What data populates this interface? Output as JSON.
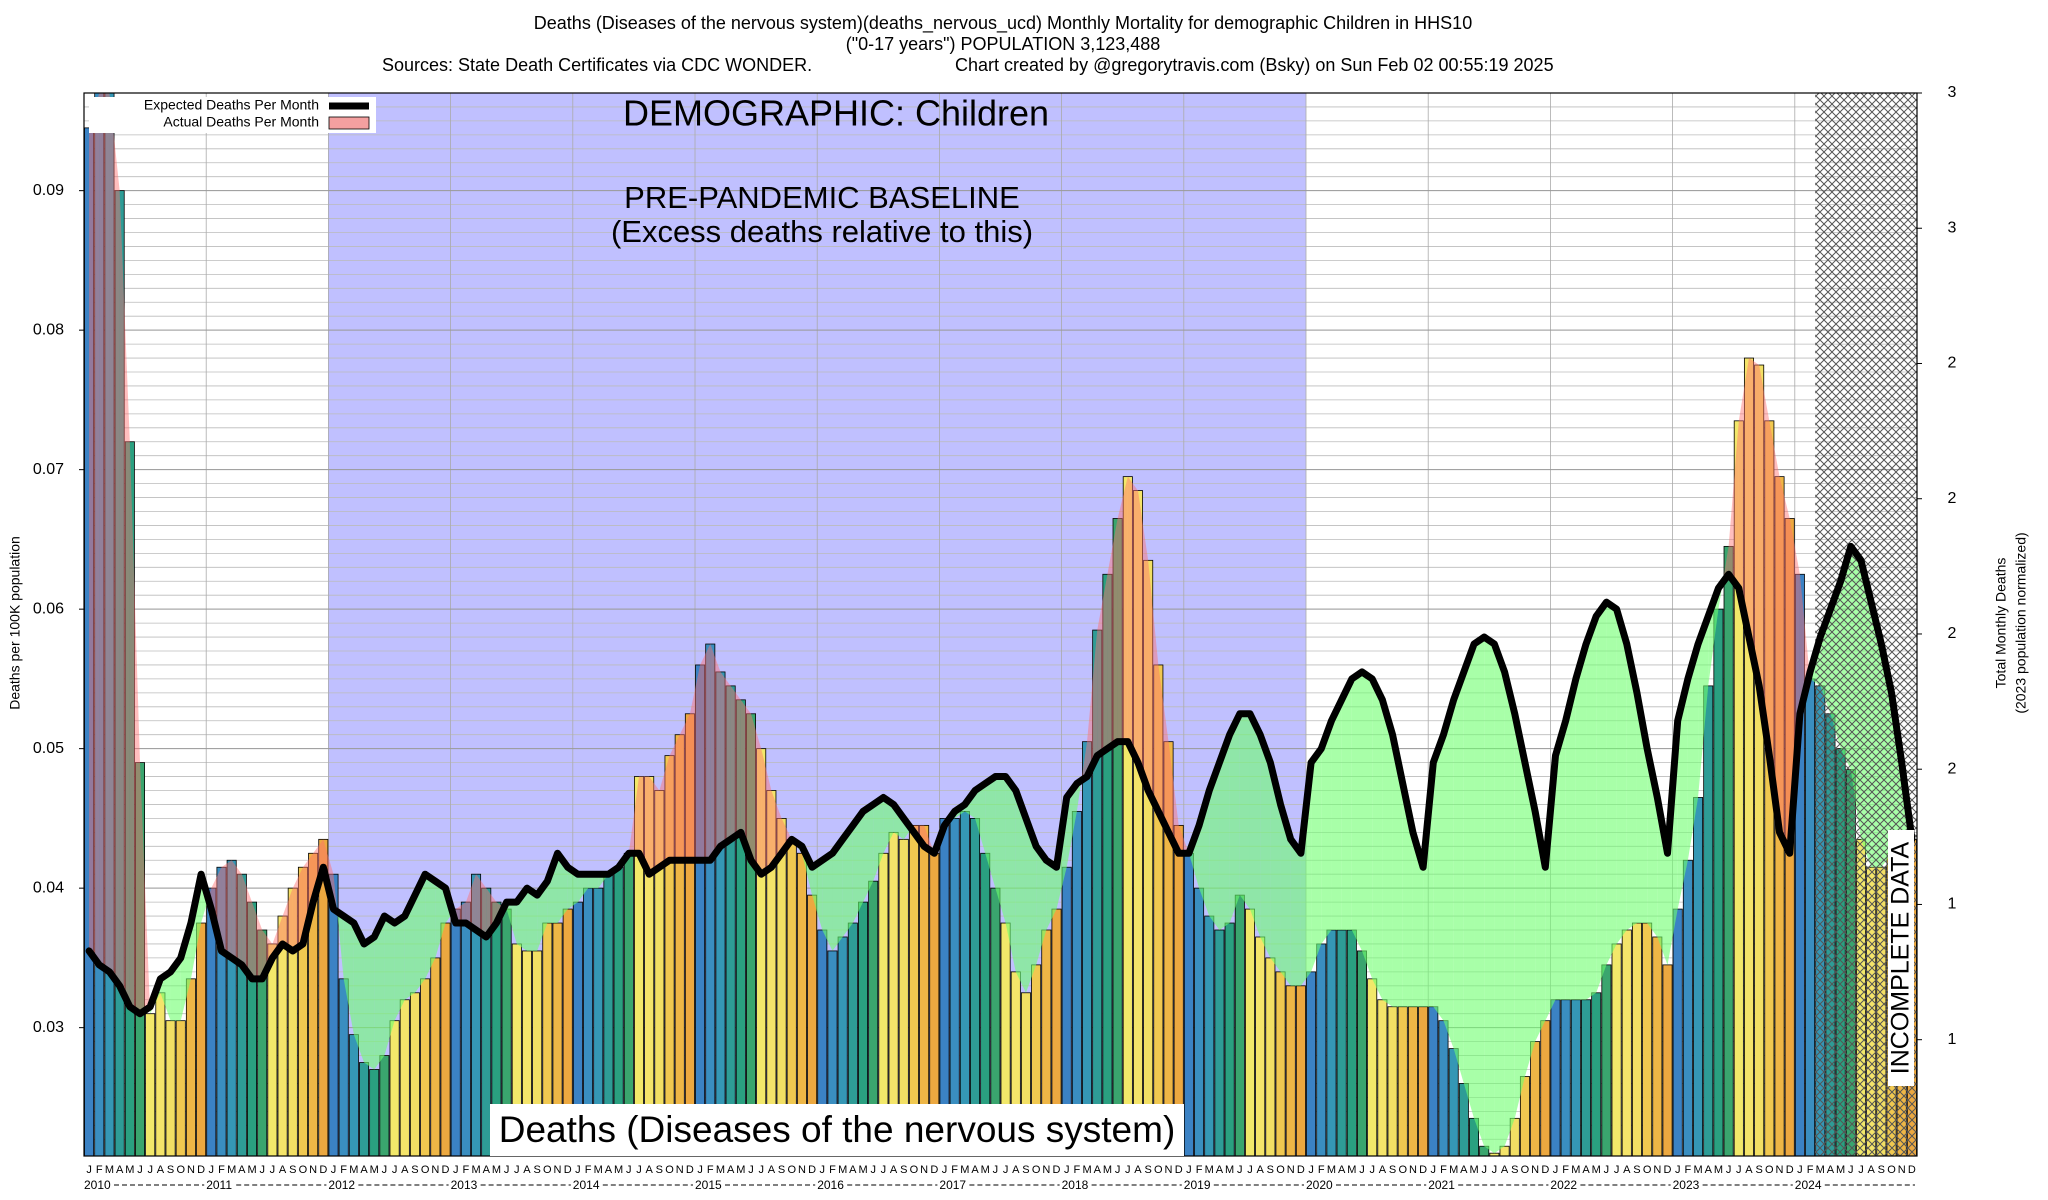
{
  "chart_data": {
    "type": "bar_line",
    "title": [
      "Deaths (Diseases of the nervous system)(deaths_nervous_ucd) Monthly Mortality for demographic Children in HHS10",
      "(\"0-17 years\") POPULATION 3,123,488",
      "Sources: State Death Certificates via CDC WONDER.",
      "Chart created by @gregorytravis.com (Bsky) on Sun Feb 02 00:55:19 2025"
    ],
    "annotations": [
      "DEMOGRAPHIC: Children",
      "PRE-PANDEMIC BASELINE",
      "(Excess deaths relative to this)",
      "Deaths (Diseases of the nervous system)",
      "INCOMPLETE DATA"
    ],
    "ylabel": "Deaths per 100K population",
    "y2label": [
      "Total Monthly Deaths",
      "(2023 population normalized)"
    ],
    "months": [
      "J",
      "F",
      "M",
      "A",
      "M",
      "J",
      "J",
      "A",
      "S",
      "O",
      "N",
      "D"
    ],
    "years": [
      "2010",
      "2011",
      "2012",
      "2013",
      "2014",
      "2015",
      "2016",
      "2017",
      "2018",
      "2019",
      "2020",
      "2021",
      "2022",
      "2023",
      "2024"
    ],
    "ylim": [
      0.0208,
      0.097
    ],
    "yticks": [
      0.03,
      0.04,
      0.05,
      0.06,
      0.07,
      0.08,
      0.09
    ],
    "y2lim": [
      0.642,
      3.0
    ],
    "y2ticks": [
      {
        "value": 0.9,
        "label": "1"
      },
      {
        "value": 1.2,
        "label": "1"
      },
      {
        "value": 1.5,
        "label": "2"
      },
      {
        "value": 1.8,
        "label": "2"
      },
      {
        "value": 2.1,
        "label": "2"
      },
      {
        "value": 2.4,
        "label": "2"
      },
      {
        "value": 2.7,
        "label": "3"
      },
      {
        "value": 3.0,
        "label": "3"
      }
    ],
    "grid": true,
    "legend": "top-left",
    "bar_colors": [
      "#3b82c4",
      "#3a8ec0",
      "#3597b5",
      "#2e9c96",
      "#2aa080",
      "#3aa56e",
      "#f2e86a",
      "#f4e46a",
      "#f2df64",
      "#f0c850",
      "#eeb646",
      "#eca840"
    ],
    "series": [
      {
        "name": "Expected Deaths Per Month",
        "color": "#000000",
        "values": [
          0.0355,
          0.0345,
          0.034,
          0.033,
          0.0315,
          0.031,
          0.0315,
          0.0335,
          0.034,
          0.035,
          0.0375,
          0.041,
          0.0385,
          0.0355,
          0.035,
          0.0345,
          0.0335,
          0.0335,
          0.035,
          0.036,
          0.0355,
          0.036,
          0.039,
          0.0415,
          0.0385,
          0.038,
          0.0375,
          0.036,
          0.0365,
          0.038,
          0.0375,
          0.038,
          0.0395,
          0.041,
          0.0405,
          0.04,
          0.0375,
          0.0375,
          0.037,
          0.0365,
          0.0375,
          0.039,
          0.039,
          0.04,
          0.0395,
          0.0405,
          0.0425,
          0.0415,
          0.041,
          0.041,
          0.041,
          0.041,
          0.0415,
          0.0425,
          0.0425,
          0.041,
          0.0415,
          0.042,
          0.042,
          0.042,
          0.042,
          0.042,
          0.043,
          0.0435,
          0.044,
          0.042,
          0.041,
          0.0415,
          0.0425,
          0.0435,
          0.043,
          0.0415,
          0.042,
          0.0425,
          0.0435,
          0.0445,
          0.0455,
          0.046,
          0.0465,
          0.046,
          0.045,
          0.044,
          0.043,
          0.0425,
          0.0445,
          0.0455,
          0.046,
          0.047,
          0.0475,
          0.048,
          0.048,
          0.047,
          0.045,
          0.043,
          0.042,
          0.0415,
          0.0465,
          0.0475,
          0.048,
          0.0495,
          0.05,
          0.0505,
          0.0505,
          0.049,
          0.047,
          0.0455,
          0.044,
          0.0425,
          0.0425,
          0.0445,
          0.047,
          0.049,
          0.051,
          0.0525,
          0.0525,
          0.051,
          0.049,
          0.046,
          0.0435,
          0.0425,
          0.049,
          0.05,
          0.052,
          0.0535,
          0.055,
          0.0555,
          0.055,
          0.0535,
          0.051,
          0.0475,
          0.044,
          0.0415,
          0.049,
          0.051,
          0.0535,
          0.0555,
          0.0575,
          0.058,
          0.0575,
          0.0555,
          0.0525,
          0.049,
          0.0455,
          0.0415,
          0.0495,
          0.052,
          0.055,
          0.0575,
          0.0595,
          0.0605,
          0.06,
          0.0575,
          0.054,
          0.05,
          0.0465,
          0.0425,
          0.052,
          0.055,
          0.0575,
          0.0595,
          0.0615,
          0.0625,
          0.0615,
          0.058,
          0.0545,
          0.0495,
          0.044,
          0.0425,
          0.0525,
          0.0555,
          0.058,
          0.06,
          0.062,
          0.0645,
          0.0635,
          0.0605,
          0.0575,
          0.054,
          0.049,
          0.0435
        ]
      },
      {
        "name": "Actual Deaths Per Month",
        "color": "#f4a0a0",
        "values": [
          0.0945,
          0.097,
          0.097,
          0.09,
          0.072,
          0.049,
          0.031,
          0.0325,
          0.0305,
          0.0305,
          0.0335,
          0.0375,
          0.04,
          0.0415,
          0.042,
          0.041,
          0.039,
          0.037,
          0.036,
          0.038,
          0.04,
          0.0415,
          0.0425,
          0.0435,
          0.041,
          0.0335,
          0.0295,
          0.0275,
          0.027,
          0.028,
          0.0305,
          0.032,
          0.0325,
          0.0335,
          0.035,
          0.0375,
          0.0385,
          0.039,
          0.041,
          0.04,
          0.039,
          0.0385,
          0.036,
          0.0355,
          0.0355,
          0.0375,
          0.0375,
          0.0385,
          0.039,
          0.04,
          0.04,
          0.041,
          0.0415,
          0.0425,
          0.048,
          0.048,
          0.047,
          0.0495,
          0.051,
          0.0525,
          0.056,
          0.0575,
          0.0555,
          0.0545,
          0.0535,
          0.0525,
          0.05,
          0.047,
          0.045,
          0.0435,
          0.0425,
          0.0395,
          0.037,
          0.0355,
          0.0365,
          0.0375,
          0.039,
          0.0405,
          0.0425,
          0.044,
          0.0435,
          0.0445,
          0.0445,
          0.0425,
          0.045,
          0.045,
          0.0455,
          0.045,
          0.0425,
          0.04,
          0.0375,
          0.034,
          0.0325,
          0.0345,
          0.037,
          0.0385,
          0.0415,
          0.0455,
          0.0505,
          0.0585,
          0.0625,
          0.0665,
          0.0695,
          0.0685,
          0.0635,
          0.056,
          0.0505,
          0.0445,
          0.0425,
          0.04,
          0.038,
          0.037,
          0.0375,
          0.0395,
          0.0385,
          0.0365,
          0.035,
          0.034,
          0.033,
          0.033,
          0.034,
          0.036,
          0.037,
          0.037,
          0.037,
          0.0355,
          0.0335,
          0.032,
          0.0315,
          0.0315,
          0.0315,
          0.0315,
          0.0315,
          0.0305,
          0.0285,
          0.026,
          0.0235,
          0.0215,
          0.021,
          0.0215,
          0.0235,
          0.0265,
          0.029,
          0.0305,
          0.032,
          0.032,
          0.032,
          0.032,
          0.0325,
          0.0345,
          0.036,
          0.037,
          0.0375,
          0.0375,
          0.0365,
          0.0345,
          0.0385,
          0.042,
          0.0465,
          0.0545,
          0.06,
          0.0645,
          0.0735,
          0.078,
          0.0775,
          0.0735,
          0.0695,
          0.0665,
          0.0625,
          0.055,
          0.0545,
          0.0525,
          0.05,
          0.0485,
          0.0435,
          0.0415,
          0.0415,
          0.0425,
          0.043,
          0.0435
        ]
      }
    ]
  }
}
